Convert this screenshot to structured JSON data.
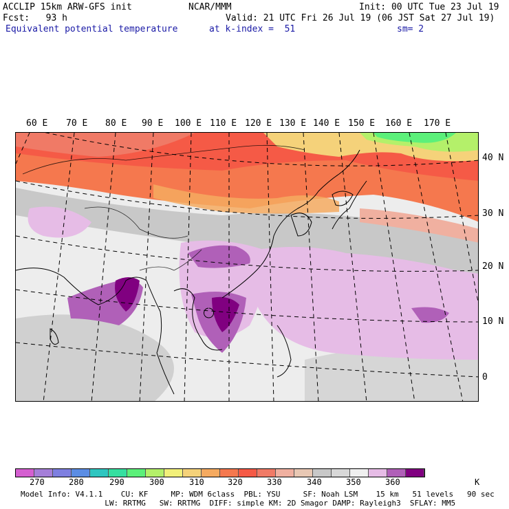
{
  "header": {
    "left1": "ACCLIP 15km ARW-GFS init",
    "center1": "NCAR/MMM",
    "right1": "Init: 00 UTC Tue 23 Jul 19",
    "left2": "Fcst:   93 h",
    "right2": "Valid: 21 UTC Fri 26 Jul 19 (06 JST Sat 27 Jul 19)",
    "field": "Equivalent potential temperature",
    "level": "at k-index =  51",
    "smooth": "sm= 2"
  },
  "map": {
    "lon_labels": [
      "60 E",
      "70 E",
      "80 E",
      "90 E",
      "100 E",
      "110 E",
      "120 E",
      "130 E",
      "140 E",
      "150 E",
      "160 E",
      "170 E"
    ],
    "lat_labels": [
      "40 N",
      "30 N",
      "20 N",
      "10 N",
      "0"
    ]
  },
  "colorbar": {
    "colors": [
      "#d45fd0",
      "#a57fd8",
      "#7e7fe0",
      "#5b8de4",
      "#2fc6c0",
      "#36dfa0",
      "#5cf07a",
      "#b4f06a",
      "#f2f07a",
      "#f5d27a",
      "#f5aa60",
      "#f5784e",
      "#f55a46",
      "#f07a66",
      "#f0b0a0",
      "#e8c8b4",
      "#c8c8c8",
      "#d8d8d8",
      "#f0f0f0",
      "#e6bce6",
      "#b060b8",
      "#800080"
    ],
    "ticks": [
      "270",
      "280",
      "290",
      "300",
      "310",
      "320",
      "330",
      "340",
      "350",
      "360"
    ],
    "unit": "K"
  },
  "footer": {
    "line1": "Model Info: V4.1.1    CU: KF     MP: WDM 6class  PBL: YSU     SF: Noah LSM    15 km   51 levels   90 sec",
    "line2": "          LW: RRTMG   SW: RRTMG  DIFF: simple KM: 2D Smagor DAMP: Rayleigh3  SFLAY: MM5"
  }
}
